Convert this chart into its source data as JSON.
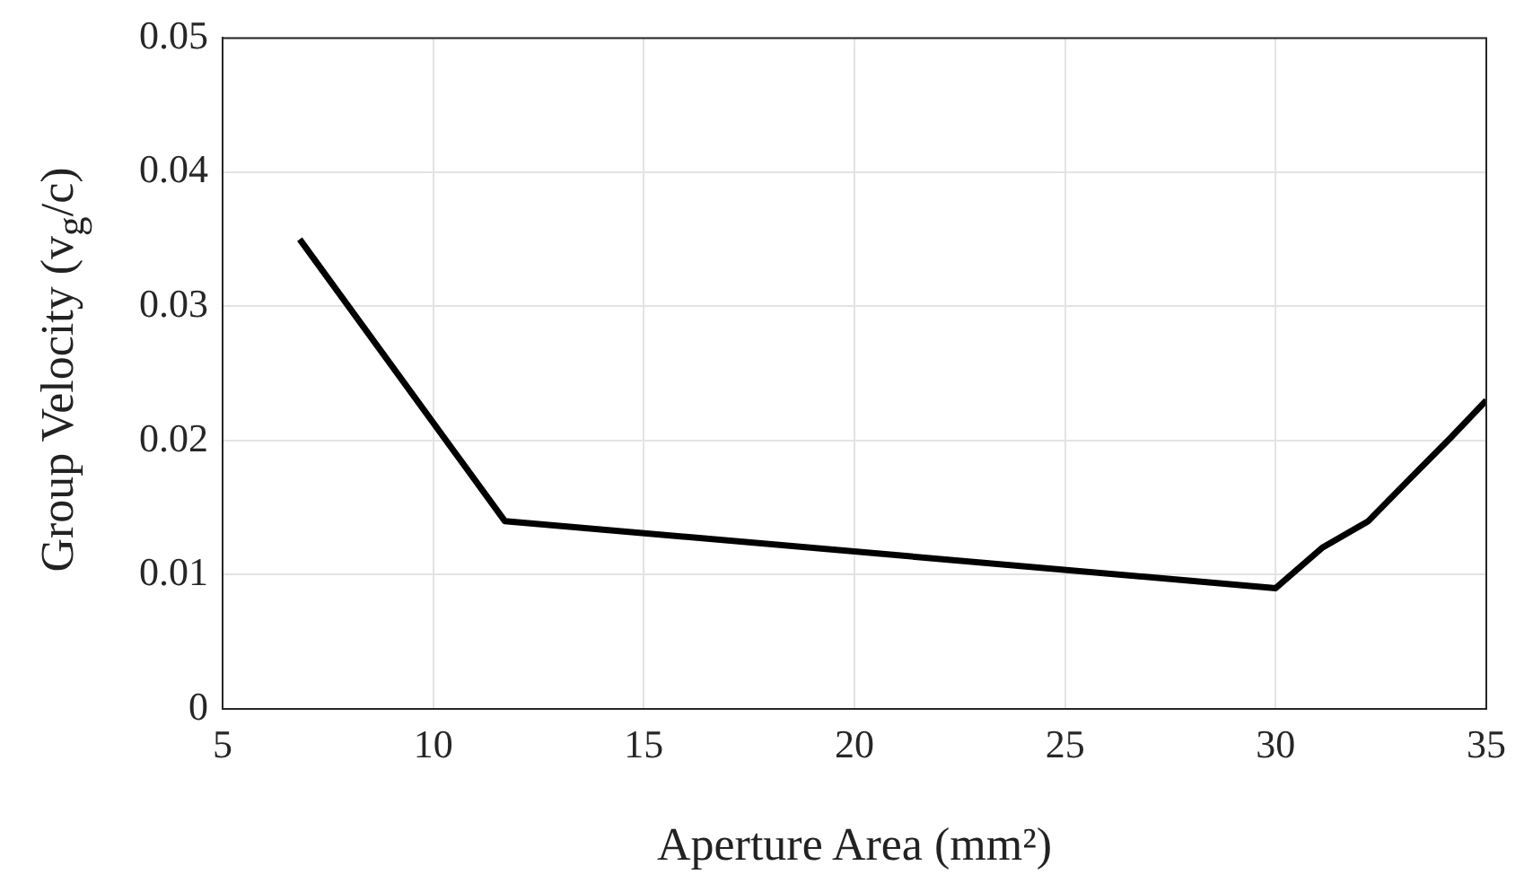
{
  "chart_data": {
    "type": "line",
    "xlabel": "Aperture Area (mm²)",
    "ylabel": "Group Velocity (v$_{g}$/c)",
    "x": [
      6.83,
      11.7,
      30,
      31.1,
      32.2,
      33.2,
      34.15,
      35
    ],
    "series": [
      {
        "color": "#000000",
        "values": [
          0.035,
          0.014,
          0.009,
          0.012,
          0.014,
          0.0172,
          0.0202,
          0.023
        ]
      }
    ],
    "xlim": [
      5,
      35
    ],
    "xticks": [
      5,
      10,
      15,
      20,
      25,
      30,
      35
    ],
    "ylim": [
      0,
      0.05
    ],
    "yticks": [
      0,
      0.01,
      0.02,
      0.03,
      0.04,
      0.05
    ],
    "grid": true,
    "legend": false,
    "marker": "none",
    "line_style": "solid"
  }
}
